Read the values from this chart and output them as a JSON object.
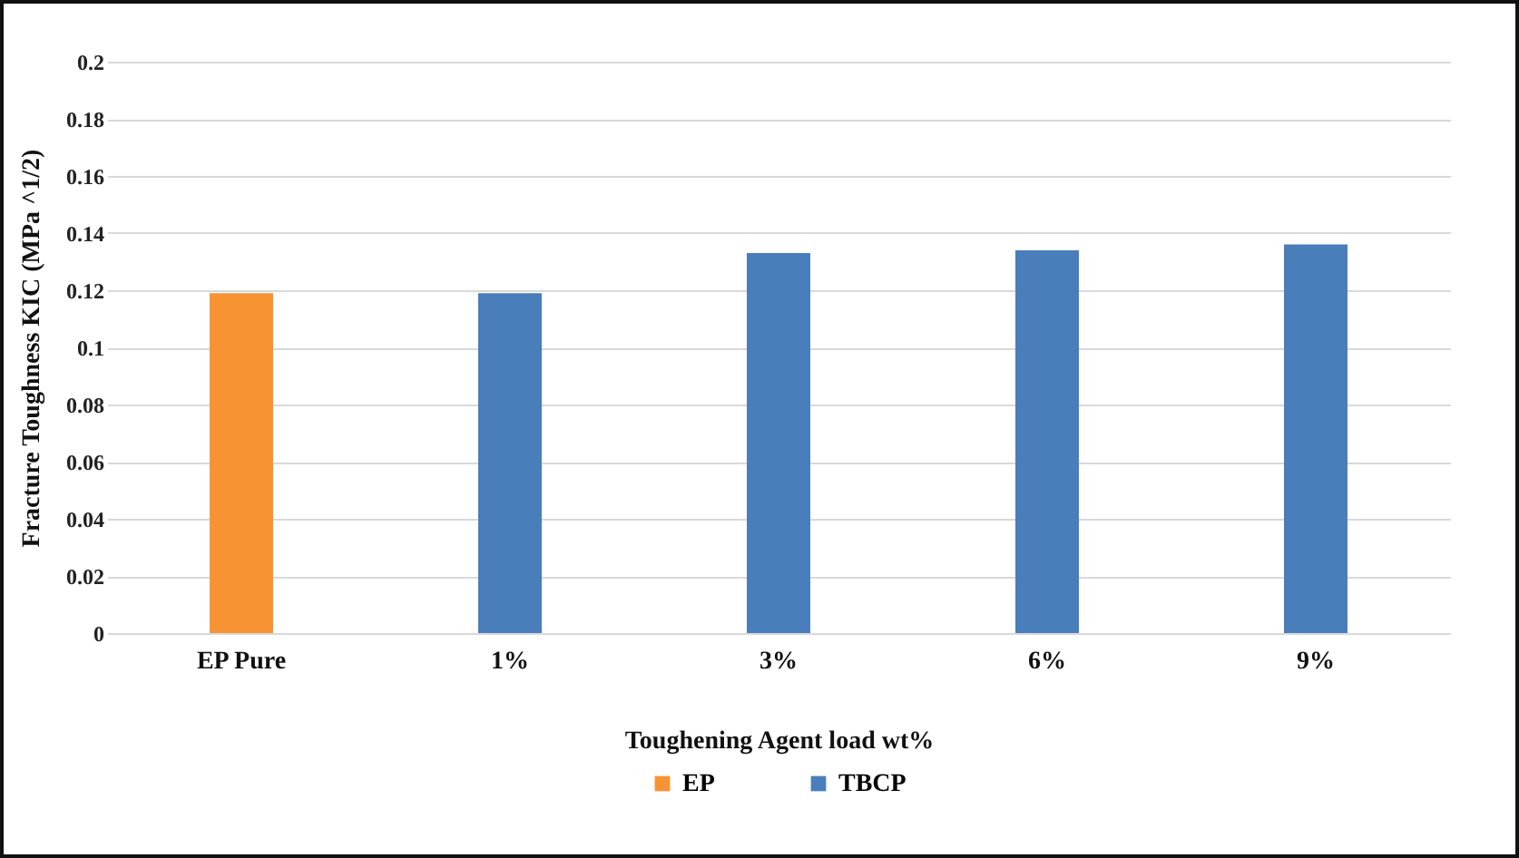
{
  "chart_data": {
    "type": "bar",
    "xlabel": "Toughening Agent load wt%",
    "ylabel": "Fracture Toughness KIC (MPa ^1/2)",
    "categories": [
      "EP Pure",
      "1%",
      "3%",
      "6%",
      "9%"
    ],
    "series": [
      {
        "name": "EP",
        "color": "#f79333",
        "values": [
          0.119,
          null,
          null,
          null,
          null
        ]
      },
      {
        "name": "TBCP",
        "color": "#4a7ebb",
        "values": [
          null,
          0.119,
          0.133,
          0.134,
          0.136
        ]
      }
    ],
    "ylim": [
      0,
      0.2
    ],
    "yticks": [
      0,
      0.02,
      0.04,
      0.06,
      0.08,
      0.1,
      0.12,
      0.14,
      0.16,
      0.18,
      0.2
    ],
    "grid": "y",
    "legend": "bottom"
  }
}
